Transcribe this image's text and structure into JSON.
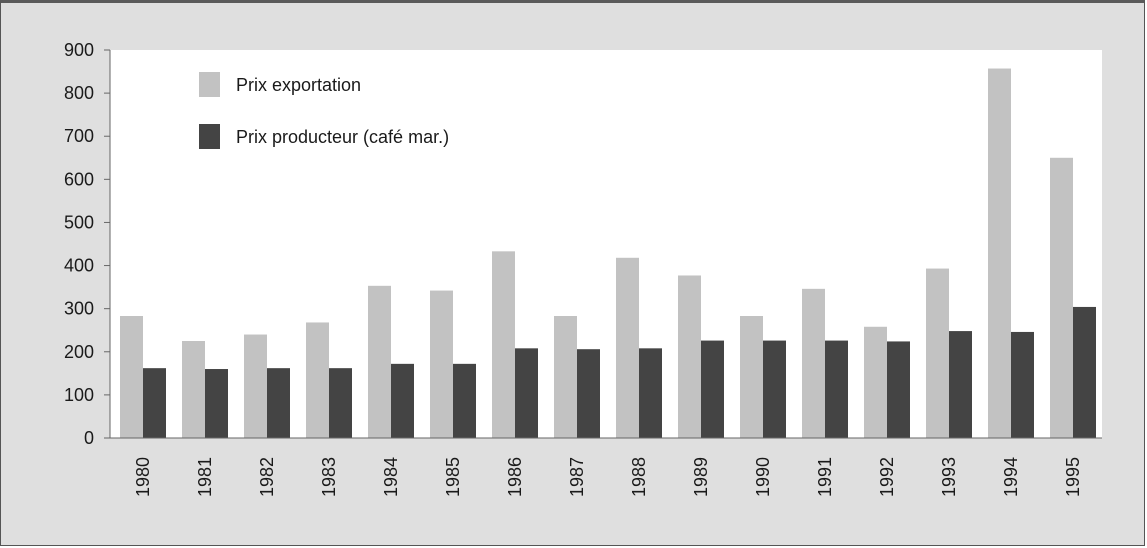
{
  "chart_data": {
    "type": "bar",
    "categories": [
      "1980",
      "1981",
      "1982",
      "1983",
      "1984",
      "1985",
      "1986",
      "1987",
      "1988",
      "1989",
      "1990",
      "1991",
      "1992",
      "1993",
      "1994",
      "1995"
    ],
    "series": [
      {
        "name": "Prix exportation",
        "color": "#c2c2c2",
        "values": [
          283,
          225,
          240,
          268,
          353,
          342,
          433,
          283,
          418,
          377,
          283,
          346,
          258,
          393,
          857,
          650
        ]
      },
      {
        "name": "Prix producteur (café mar.)",
        "color": "#444444",
        "values": [
          162,
          160,
          162,
          162,
          172,
          172,
          208,
          206,
          208,
          226,
          226,
          226,
          224,
          248,
          246,
          304
        ]
      }
    ],
    "yticks": [
      0,
      100,
      200,
      300,
      400,
      500,
      600,
      700,
      800,
      900
    ],
    "ylim": [
      0,
      900
    ],
    "legend_position": "top-left",
    "grid": false
  }
}
